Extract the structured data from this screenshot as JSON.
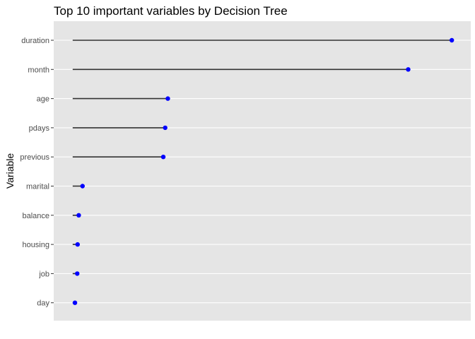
{
  "chart_data": {
    "type": "lollipop",
    "title": "Top 10 important variables by Decision Tree",
    "ylabel": "Variable",
    "xlabel": "",
    "categories": [
      "duration",
      "month",
      "age",
      "pdays",
      "previous",
      "marital",
      "balance",
      "housing",
      "job",
      "day"
    ],
    "values": [
      1.0,
      0.885,
      0.251,
      0.244,
      0.239,
      0.026,
      0.016,
      0.013,
      0.012,
      0.006
    ],
    "xlim": [
      -0.05,
      1.05
    ],
    "grid": true,
    "legend": "none",
    "colors": {
      "panel_background": "#e5e5e5",
      "gridline": "#ffffff",
      "stem": "#333333",
      "point": "#0000ff",
      "tick_label": "#4d4d4d",
      "tick_mark": "#333333"
    }
  }
}
